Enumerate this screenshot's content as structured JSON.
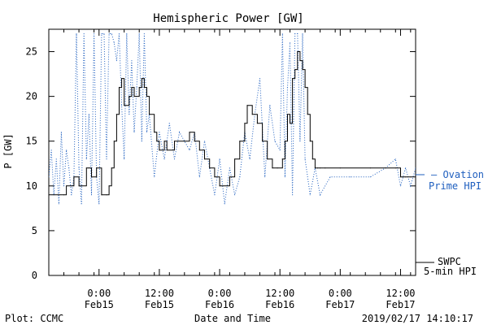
{
  "chart_data": {
    "type": "line",
    "title": "Hemispheric Power [GW]",
    "xlabel": "Date and Time",
    "ylabel": "P [GW]",
    "ylim": [
      0,
      27.5
    ],
    "xlim": [
      "2019-02-14 14:00",
      "2019-02-17 15:00"
    ],
    "yticks": [
      0,
      5,
      10,
      15,
      20,
      25
    ],
    "xticks": [
      {
        "time": "2019-02-15 00:00",
        "line1": "0:00",
        "line2": "Feb15"
      },
      {
        "time": "2019-02-15 12:00",
        "line1": "12:00",
        "line2": "Feb15"
      },
      {
        "time": "2019-02-16 00:00",
        "line1": "0:00",
        "line2": "Feb16"
      },
      {
        "time": "2019-02-16 12:00",
        "line1": "12:00",
        "line2": "Feb16"
      },
      {
        "time": "2019-02-17 00:00",
        "line1": "0:00",
        "line2": "Feb17"
      },
      {
        "time": "2019-02-17 12:00",
        "line1": "12:00",
        "line2": "Feb17"
      }
    ],
    "grid": false,
    "series": [
      {
        "name": "SWPC 5-min HPI",
        "style": "solid",
        "color": "#000000",
        "x": [
          "2019-02-14 14:00",
          "2019-02-14 17:00",
          "2019-02-14 17:30",
          "2019-02-14 18:30",
          "2019-02-14 19:00",
          "2019-02-14 20:00",
          "2019-02-14 20:30",
          "2019-02-14 21:30",
          "2019-02-14 22:00",
          "2019-02-14 22:30",
          "2019-02-14 23:30",
          "2019-02-15 00:30",
          "2019-02-15 01:30",
          "2019-02-15 02:00",
          "2019-02-15 02:30",
          "2019-02-15 03:00",
          "2019-02-15 03:30",
          "2019-02-15 04:00",
          "2019-02-15 04:30",
          "2019-02-15 05:00",
          "2019-02-15 06:00",
          "2019-02-15 06:30",
          "2019-02-15 07:00",
          "2019-02-15 08:00",
          "2019-02-15 08:30",
          "2019-02-15 09:00",
          "2019-02-15 09:30",
          "2019-02-15 10:00",
          "2019-02-15 11:00",
          "2019-02-15 11:30",
          "2019-02-15 12:00",
          "2019-02-15 13:00",
          "2019-02-15 13:30",
          "2019-02-15 15:00",
          "2019-02-15 17:00",
          "2019-02-15 18:00",
          "2019-02-15 19:00",
          "2019-02-15 20:00",
          "2019-02-15 21:00",
          "2019-02-15 22:00",
          "2019-02-15 23:00",
          "2019-02-16 00:00",
          "2019-02-16 00:30",
          "2019-02-16 02:00",
          "2019-02-16 03:00",
          "2019-02-16 04:00",
          "2019-02-16 05:00",
          "2019-02-16 05:30",
          "2019-02-16 06:30",
          "2019-02-16 07:30",
          "2019-02-16 08:30",
          "2019-02-16 09:30",
          "2019-02-16 10:30",
          "2019-02-16 11:30",
          "2019-02-16 12:30",
          "2019-02-16 13:00",
          "2019-02-16 13:30",
          "2019-02-16 14:00",
          "2019-02-16 14:30",
          "2019-02-16 15:00",
          "2019-02-16 15:30",
          "2019-02-16 16:00",
          "2019-02-16 16:30",
          "2019-02-16 17:00",
          "2019-02-16 17:30",
          "2019-02-16 18:00",
          "2019-02-16 18:30",
          "2019-02-16 19:00",
          "2019-02-16 19:30",
          "2019-02-16 20:00",
          "2019-02-16 21:00",
          "2019-02-17 00:00",
          "2019-02-17 06:00",
          "2019-02-17 11:00",
          "2019-02-17 12:00",
          "2019-02-17 12:30",
          "2019-02-17 13:00",
          "2019-02-17 14:00",
          "2019-02-17 15:00"
        ],
        "y": [
          9,
          9,
          10,
          10,
          11,
          10,
          10,
          12,
          12,
          11,
          12,
          9,
          9,
          10,
          12,
          15,
          18,
          21,
          22,
          19,
          20,
          21,
          20,
          21,
          22,
          21,
          20,
          18,
          16,
          15,
          14,
          15,
          14,
          15,
          15,
          16,
          15,
          14,
          13,
          12,
          11,
          10,
          10,
          11,
          13,
          15,
          17,
          19,
          18,
          17,
          15,
          13,
          12,
          12,
          13,
          15,
          18,
          17,
          22,
          23,
          25,
          24,
          23,
          21,
          18,
          15,
          13,
          12,
          12,
          12,
          12,
          12,
          12,
          12,
          11,
          11,
          11,
          11,
          11
        ]
      },
      {
        "name": "Ovation Prime HPI",
        "style": "dotted",
        "color": "#1f5fbf",
        "x": [
          "2019-02-14 14:00",
          "2019-02-14 14:30",
          "2019-02-14 15:00",
          "2019-02-14 15:30",
          "2019-02-14 16:00",
          "2019-02-14 16:30",
          "2019-02-14 17:00",
          "2019-02-14 17:30",
          "2019-02-14 18:00",
          "2019-02-14 18:30",
          "2019-02-14 19:00",
          "2019-02-14 19:30",
          "2019-02-14 20:00",
          "2019-02-14 20:30",
          "2019-02-14 21:00",
          "2019-02-14 21:30",
          "2019-02-14 22:00",
          "2019-02-14 22:30",
          "2019-02-14 23:00",
          "2019-02-14 23:30",
          "2019-02-15 00:00",
          "2019-02-15 00:30",
          "2019-02-15 01:00",
          "2019-02-15 01:30",
          "2019-02-15 02:00",
          "2019-02-15 02:30",
          "2019-02-15 03:00",
          "2019-02-15 03:30",
          "2019-02-15 04:00",
          "2019-02-15 04:30",
          "2019-02-15 05:00",
          "2019-02-15 05:30",
          "2019-02-15 06:00",
          "2019-02-15 06:30",
          "2019-02-15 07:00",
          "2019-02-15 07:30",
          "2019-02-15 08:00",
          "2019-02-15 08:30",
          "2019-02-15 09:00",
          "2019-02-15 09:30",
          "2019-02-15 10:00",
          "2019-02-15 11:00",
          "2019-02-15 12:00",
          "2019-02-15 13:00",
          "2019-02-15 14:00",
          "2019-02-15 15:00",
          "2019-02-15 16:00",
          "2019-02-15 17:00",
          "2019-02-15 18:00",
          "2019-02-15 19:00",
          "2019-02-15 20:00",
          "2019-02-15 21:00",
          "2019-02-15 22:00",
          "2019-02-15 23:00",
          "2019-02-16 00:00",
          "2019-02-16 01:00",
          "2019-02-16 02:00",
          "2019-02-16 03:00",
          "2019-02-16 04:00",
          "2019-02-16 05:00",
          "2019-02-16 06:00",
          "2019-02-16 07:00",
          "2019-02-16 08:00",
          "2019-02-16 09:00",
          "2019-02-16 10:00",
          "2019-02-16 11:00",
          "2019-02-16 12:00",
          "2019-02-16 12:30",
          "2019-02-16 13:00",
          "2019-02-16 13:30",
          "2019-02-16 14:00",
          "2019-02-16 14:30",
          "2019-02-16 15:00",
          "2019-02-16 15:30",
          "2019-02-16 16:00",
          "2019-02-16 16:30",
          "2019-02-16 17:00",
          "2019-02-16 18:00",
          "2019-02-16 19:00",
          "2019-02-16 20:00",
          "2019-02-16 22:00",
          "2019-02-17 02:00",
          "2019-02-17 06:00",
          "2019-02-17 09:00",
          "2019-02-17 11:00",
          "2019-02-17 12:00",
          "2019-02-17 13:00",
          "2019-02-17 14:00",
          "2019-02-17 15:00"
        ],
        "y": [
          11,
          14,
          9,
          13,
          8,
          16,
          10,
          14,
          12,
          9,
          11,
          27,
          12,
          8,
          27,
          13,
          18,
          9,
          27,
          11,
          8,
          27,
          27,
          13,
          27,
          27,
          26,
          24,
          27,
          19,
          13,
          27,
          18,
          24,
          16,
          21,
          27,
          15,
          27,
          16,
          18,
          11,
          16,
          13,
          17,
          13,
          16,
          15,
          14,
          16,
          11,
          15,
          12,
          9,
          13,
          8,
          12,
          9,
          11,
          16,
          13,
          18,
          22,
          11,
          19,
          15,
          14,
          27,
          11,
          21,
          26,
          9,
          27,
          27,
          15,
          27,
          13,
          9,
          12,
          9,
          11,
          11,
          11,
          12,
          13,
          10,
          12,
          10,
          12
        ]
      }
    ],
    "legend": [
      {
        "label": "— Ovation",
        "label2": "Prime HPI",
        "color": "#1f5fbf"
      },
      {
        "label": "SWPC",
        "label2": "5-min HPI",
        "color": "#000000"
      }
    ],
    "footer": {
      "left": "Plot: CCMC",
      "right": "2019/02/17 14:10:17"
    }
  }
}
